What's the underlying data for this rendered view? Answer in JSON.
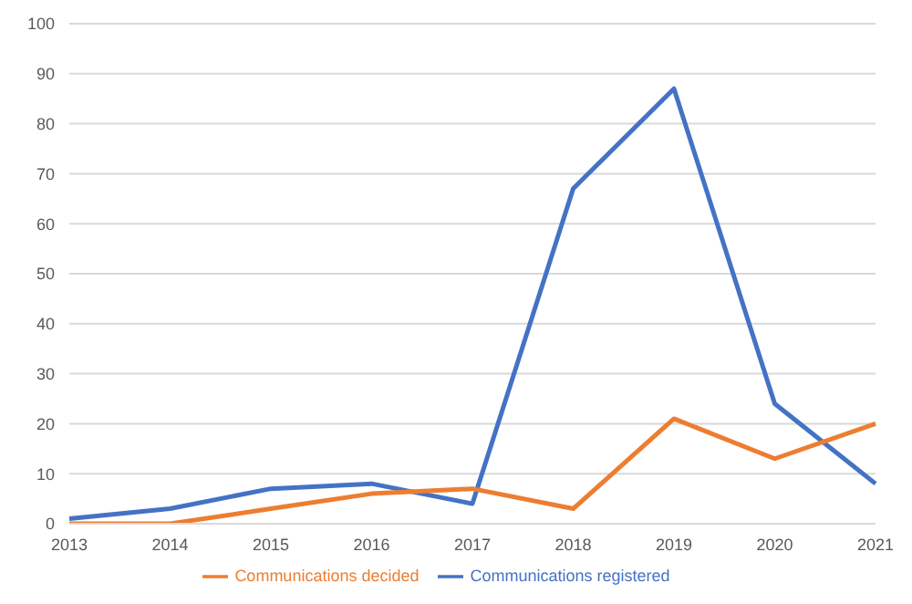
{
  "chart_data": {
    "type": "line",
    "categories": [
      "2013",
      "2014",
      "2015",
      "2016",
      "2017",
      "2018",
      "2019",
      "2020",
      "2021"
    ],
    "series": [
      {
        "name": "Communications registered",
        "color": "#4472c4",
        "values": [
          1,
          3,
          7,
          8,
          4,
          67,
          87,
          24,
          8
        ]
      },
      {
        "name": "Communications decided",
        "color": "#ed7d31",
        "values": [
          0,
          0,
          3,
          6,
          7,
          3,
          21,
          13,
          20
        ]
      }
    ],
    "ylim": [
      0,
      100
    ],
    "yticks": [
      0,
      10,
      20,
      30,
      40,
      50,
      60,
      70,
      80,
      90,
      100
    ],
    "grid": "y",
    "legend": "bottom",
    "marker": "none",
    "line_style": "solid"
  }
}
